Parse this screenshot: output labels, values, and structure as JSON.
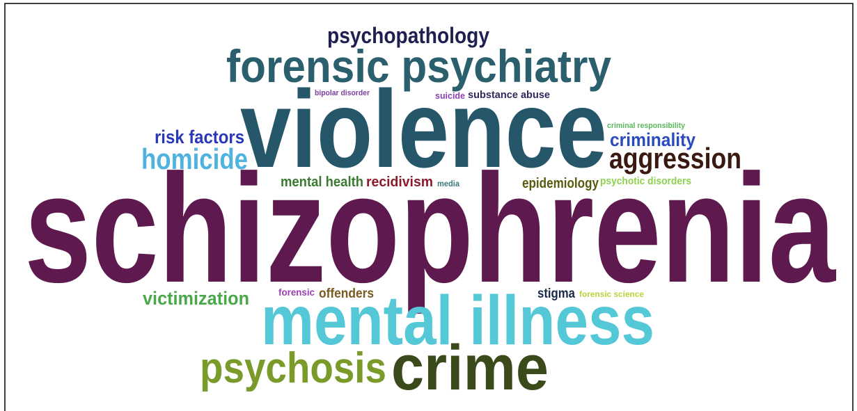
{
  "words": [
    "psychopathology",
    "forensic psychiatry",
    "bipolar disorder",
    "suicide",
    "substance abuse",
    "violence",
    "criminal responsibility",
    "risk factors",
    "criminality",
    "homicide",
    "aggression",
    "mental health",
    "recidivism",
    "media",
    "epidemiology",
    "psychotic disorders",
    "schizophrenia",
    "victimization",
    "forensic",
    "offenders",
    "stigma",
    "forensic science",
    "mental illness",
    "psychosis",
    "crime"
  ]
}
